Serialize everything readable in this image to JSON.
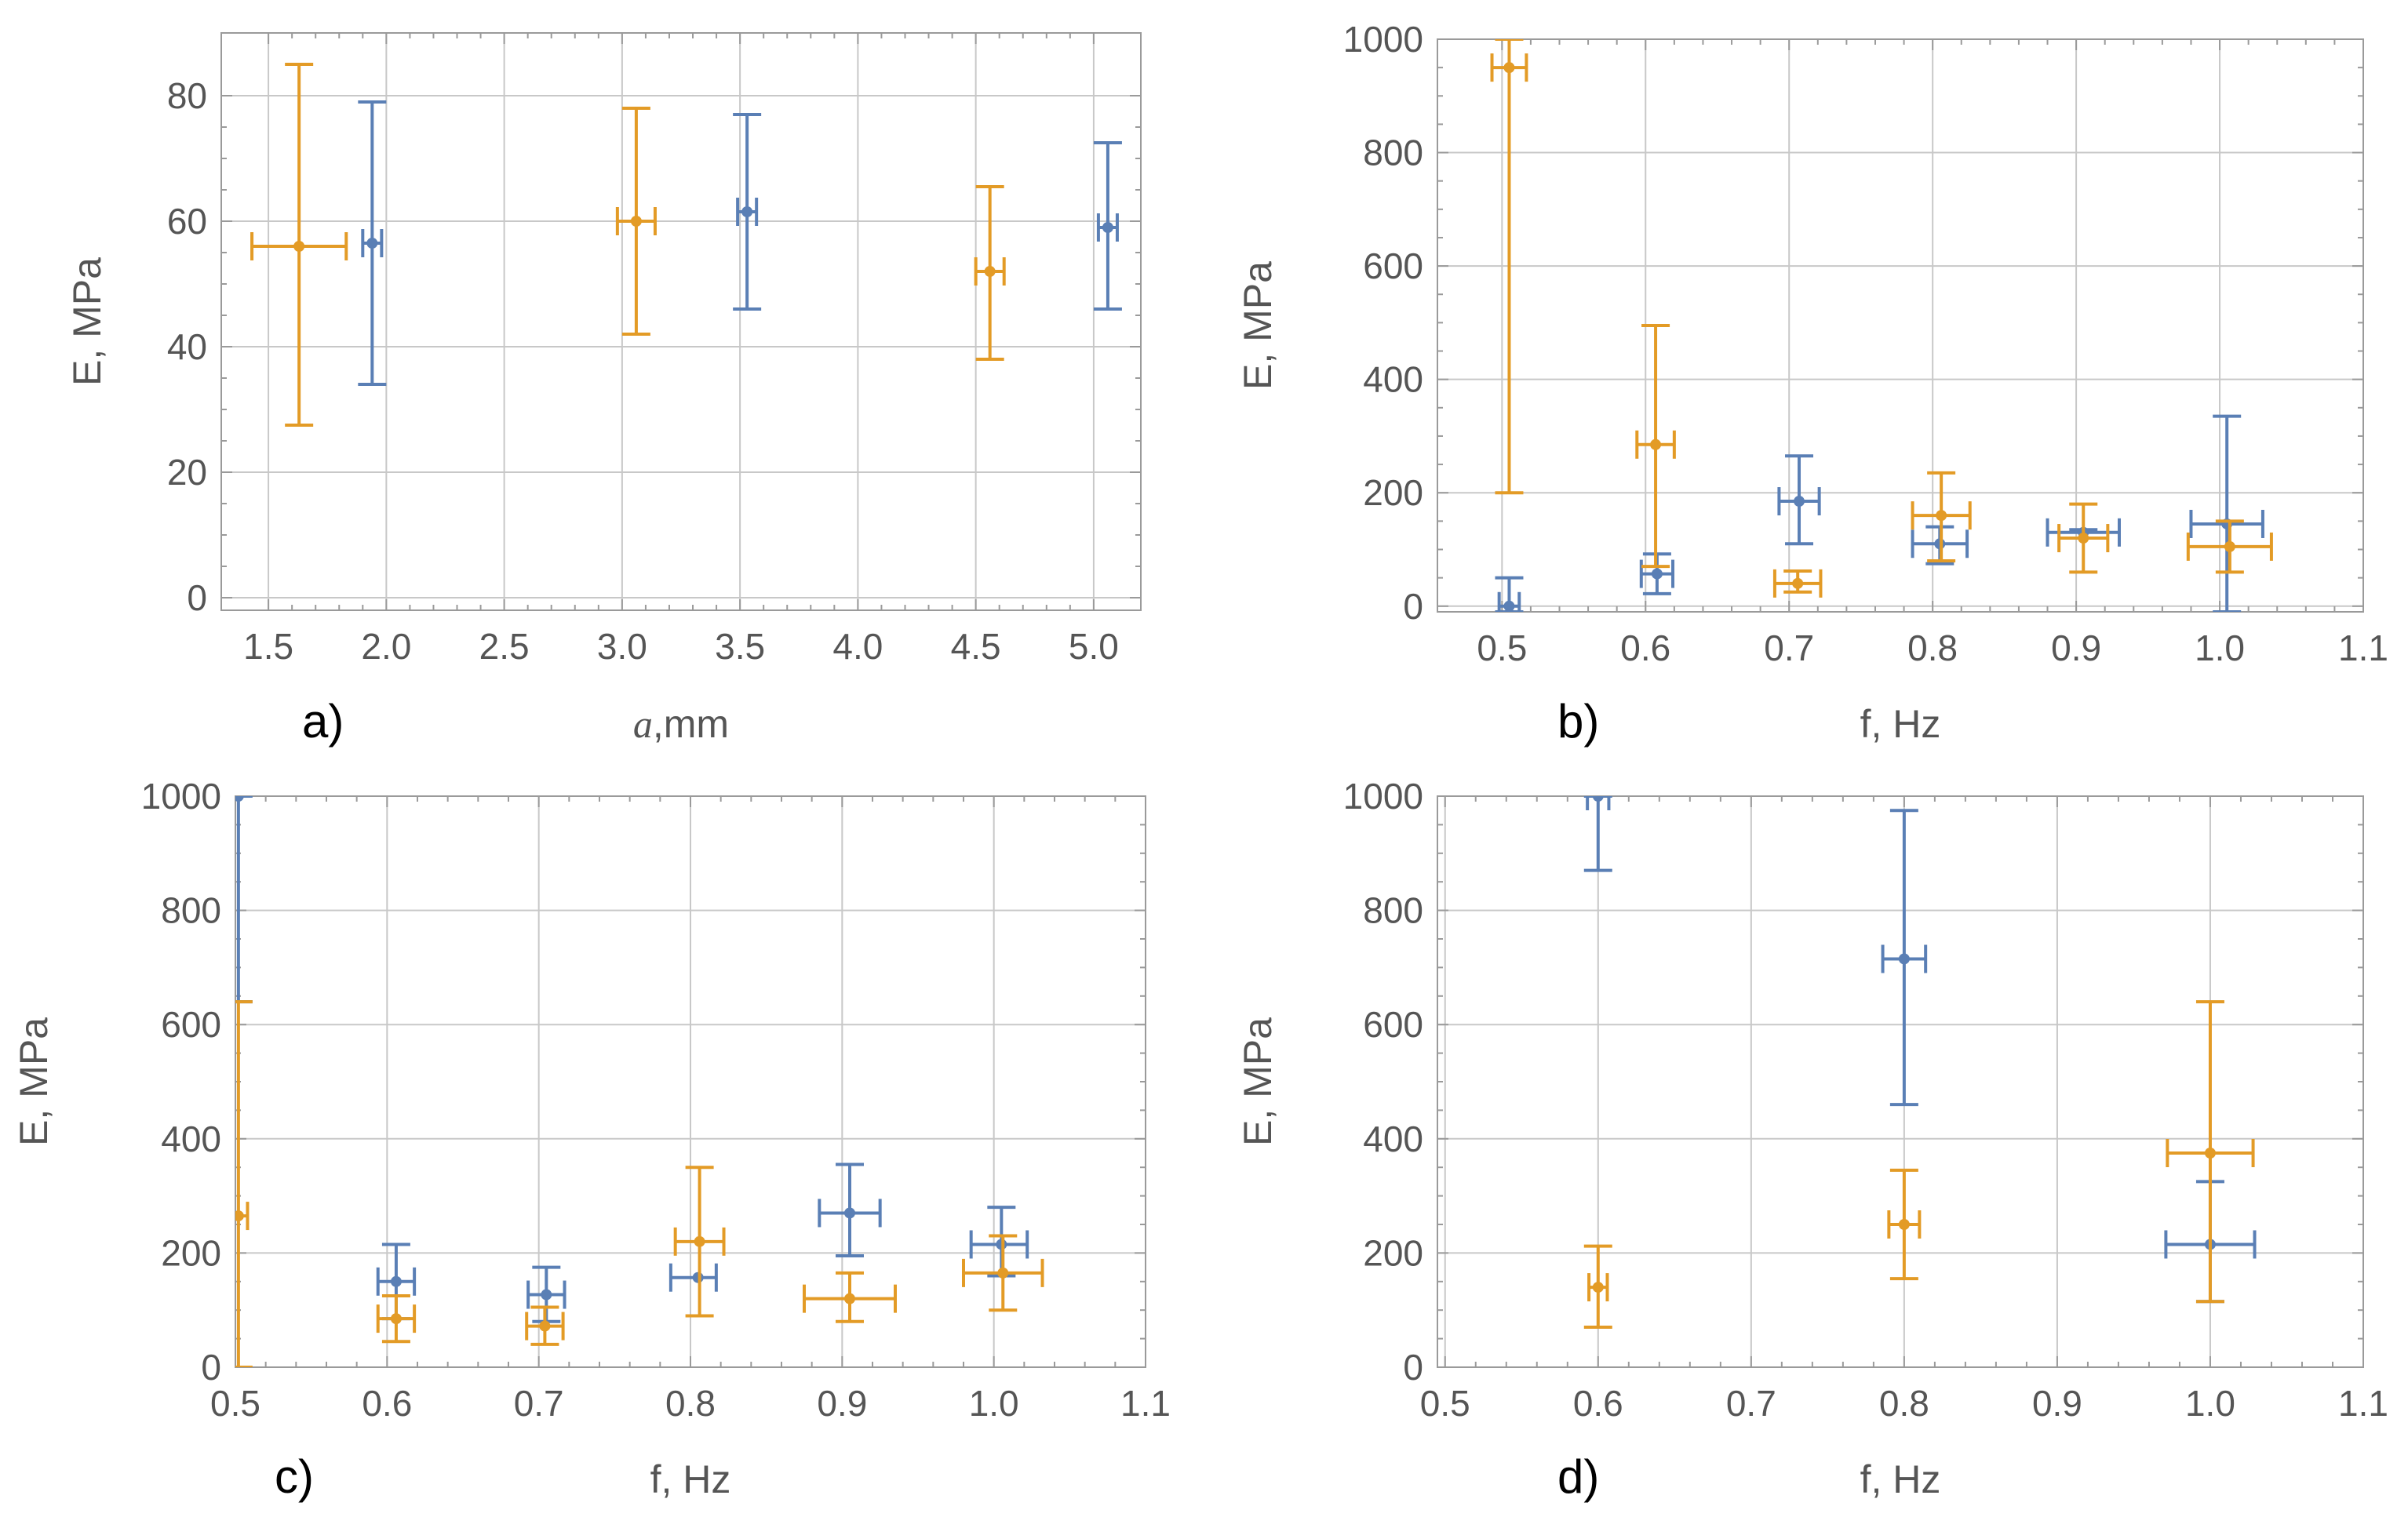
{
  "colors": {
    "series_a": "#5a7fb5",
    "series_b": "#e39b26"
  },
  "chart_data": [
    {
      "type": "scatter",
      "panel_label": "a)",
      "xlabel_italic": "a",
      "xlabel": ",mm",
      "ylabel": "E, MPa",
      "xlim": [
        1.3,
        5.2
      ],
      "ylim": [
        -2,
        90
      ],
      "xticks": [
        1.5,
        2.0,
        2.5,
        3.0,
        3.5,
        4.0,
        4.5,
        5.0
      ],
      "xtick_labels": [
        "1.5",
        "2.0",
        "2.5",
        "3.0",
        "3.5",
        "4.0",
        "4.5",
        "5.0"
      ],
      "yticks": [
        0,
        20,
        40,
        60,
        80
      ],
      "ytick_labels": [
        "0",
        "20",
        "40",
        "60",
        "80"
      ],
      "series": [
        {
          "name": "blue",
          "color": "#5a7fb5",
          "points": [
            {
              "x": 1.94,
              "y": 56.5,
              "ylo": 34,
              "yhi": 79,
              "xlo": 1.9,
              "xhi": 1.98
            },
            {
              "x": 3.53,
              "y": 61.5,
              "ylo": 46,
              "yhi": 77,
              "xlo": 3.49,
              "xhi": 3.57
            },
            {
              "x": 5.06,
              "y": 59,
              "ylo": 46,
              "yhi": 72.5,
              "xlo": 5.02,
              "xhi": 5.1
            }
          ]
        },
        {
          "name": "orange",
          "color": "#e39b26",
          "points": [
            {
              "x": 1.63,
              "y": 56,
              "ylo": 27.5,
              "yhi": 85,
              "xlo": 1.43,
              "xhi": 1.83
            },
            {
              "x": 3.06,
              "y": 60,
              "ylo": 42,
              "yhi": 78,
              "xlo": 2.98,
              "xhi": 3.14
            },
            {
              "x": 4.56,
              "y": 52,
              "ylo": 38,
              "yhi": 65.5,
              "xlo": 4.5,
              "xhi": 4.62
            }
          ]
        }
      ]
    },
    {
      "type": "scatter",
      "panel_label": "b)",
      "xlabel": "f, Hz",
      "ylabel": "E, MPa",
      "xlim": [
        0.455,
        1.1
      ],
      "ylim": [
        -10,
        1000
      ],
      "xticks": [
        0.5,
        0.6,
        0.7,
        0.8,
        0.9,
        1.0,
        1.1
      ],
      "xtick_labels": [
        "0.5",
        "0.6",
        "0.7",
        "0.8",
        "0.9",
        "1.0",
        "1.1"
      ],
      "yticks": [
        0,
        200,
        400,
        600,
        800,
        1000
      ],
      "ytick_labels": [
        "0",
        "200",
        "400",
        "600",
        "800",
        "1000"
      ],
      "series": [
        {
          "name": "blue",
          "color": "#5a7fb5",
          "points": [
            {
              "x": 0.505,
              "y": 0,
              "ylo": -10,
              "yhi": 50,
              "xlo": 0.498,
              "xhi": 0.512
            },
            {
              "x": 0.608,
              "y": 57,
              "ylo": 22,
              "yhi": 92,
              "xlo": 0.597,
              "xhi": 0.619
            },
            {
              "x": 0.707,
              "y": 185,
              "ylo": 110,
              "yhi": 265,
              "xlo": 0.693,
              "xhi": 0.721
            },
            {
              "x": 0.805,
              "y": 110,
              "ylo": 75,
              "yhi": 140,
              "xlo": 0.786,
              "xhi": 0.824
            },
            {
              "x": 0.905,
              "y": 130,
              "ylo": 120,
              "yhi": 135,
              "xlo": 0.88,
              "xhi": 0.93
            },
            {
              "x": 1.005,
              "y": 145,
              "ylo": -10,
              "yhi": 335,
              "xlo": 0.98,
              "xhi": 1.03
            }
          ]
        },
        {
          "name": "orange",
          "color": "#e39b26",
          "points": [
            {
              "x": 0.505,
              "y": 950,
              "ylo": 200,
              "yhi": 1000,
              "xlo": 0.493,
              "xhi": 0.517
            },
            {
              "x": 0.607,
              "y": 285,
              "ylo": 70,
              "yhi": 495,
              "xlo": 0.594,
              "xhi": 0.62
            },
            {
              "x": 0.706,
              "y": 40,
              "ylo": 25,
              "yhi": 62,
              "xlo": 0.69,
              "xhi": 0.722
            },
            {
              "x": 0.806,
              "y": 160,
              "ylo": 80,
              "yhi": 235,
              "xlo": 0.786,
              "xhi": 0.826
            },
            {
              "x": 0.905,
              "y": 120,
              "ylo": 60,
              "yhi": 180,
              "xlo": 0.888,
              "xhi": 0.922
            },
            {
              "x": 1.007,
              "y": 105,
              "ylo": 60,
              "yhi": 150,
              "xlo": 0.978,
              "xhi": 1.036
            }
          ]
        }
      ]
    },
    {
      "type": "scatter",
      "panel_label": "c)",
      "xlabel": "f, Hz",
      "ylabel": "E, MPa",
      "xlim": [
        0.5,
        1.1
      ],
      "ylim": [
        0,
        1000
      ],
      "xticks": [
        0.5,
        0.6,
        0.7,
        0.8,
        0.9,
        1.0,
        1.1
      ],
      "xtick_labels": [
        "0.5",
        "0.6",
        "0.7",
        "0.8",
        "0.9",
        "1.0",
        "1.1"
      ],
      "yticks": [
        0,
        200,
        400,
        600,
        800,
        1000
      ],
      "ytick_labels": [
        "0",
        "200",
        "400",
        "600",
        "800",
        "1000"
      ],
      "series": [
        {
          "name": "blue",
          "color": "#5a7fb5",
          "points": [
            {
              "x": 0.502,
              "y": 1000,
              "ylo": 640,
              "yhi": 1000,
              "xlo": 0.502,
              "xhi": 0.502
            },
            {
              "x": 0.606,
              "y": 150,
              "ylo": 85,
              "yhi": 215,
              "xlo": 0.594,
              "xhi": 0.618
            },
            {
              "x": 0.705,
              "y": 127,
              "ylo": 80,
              "yhi": 175,
              "xlo": 0.693,
              "xhi": 0.717
            },
            {
              "x": 0.805,
              "y": 157,
              "ylo": 157,
              "yhi": 157,
              "xlo": 0.787,
              "xhi": 0.817
            },
            {
              "x": 0.905,
              "y": 270,
              "ylo": 195,
              "yhi": 355,
              "xlo": 0.885,
              "xhi": 0.925
            },
            {
              "x": 1.005,
              "y": 215,
              "ylo": 160,
              "yhi": 280,
              "xlo": 0.985,
              "xhi": 1.022
            }
          ]
        },
        {
          "name": "orange",
          "color": "#e39b26",
          "points": [
            {
              "x": 0.502,
              "y": 265,
              "ylo": 0,
              "yhi": 640,
              "xlo": 0.496,
              "xhi": 0.508
            },
            {
              "x": 0.606,
              "y": 85,
              "ylo": 45,
              "yhi": 125,
              "xlo": 0.594,
              "xhi": 0.618
            },
            {
              "x": 0.704,
              "y": 72,
              "ylo": 40,
              "yhi": 105,
              "xlo": 0.692,
              "xhi": 0.716
            },
            {
              "x": 0.806,
              "y": 220,
              "ylo": 90,
              "yhi": 350,
              "xlo": 0.79,
              "xhi": 0.822
            },
            {
              "x": 0.905,
              "y": 120,
              "ylo": 80,
              "yhi": 165,
              "xlo": 0.875,
              "xhi": 0.935
            },
            {
              "x": 1.006,
              "y": 165,
              "ylo": 100,
              "yhi": 230,
              "xlo": 0.98,
              "xhi": 1.032
            }
          ]
        }
      ]
    },
    {
      "type": "scatter",
      "panel_label": "d)",
      "xlabel": "f, Hz",
      "ylabel": "E, MPa",
      "xlim": [
        0.495,
        1.1
      ],
      "ylim": [
        0,
        1000
      ],
      "xticks": [
        0.5,
        0.6,
        0.7,
        0.8,
        0.9,
        1.0,
        1.1
      ],
      "xtick_labels": [
        "0.5",
        "0.6",
        "0.7",
        "0.8",
        "0.9",
        "1.0",
        "1.1"
      ],
      "yticks": [
        0,
        200,
        400,
        600,
        800,
        1000
      ],
      "ytick_labels": [
        "0",
        "200",
        "400",
        "600",
        "800",
        "1000"
      ],
      "series": [
        {
          "name": "blue",
          "color": "#5a7fb5",
          "points": [
            {
              "x": 0.6,
              "y": 1000,
              "ylo": 870,
              "yhi": 1000,
              "xlo": 0.593,
              "xhi": 0.607
            },
            {
              "x": 0.8,
              "y": 715,
              "ylo": 460,
              "yhi": 975,
              "xlo": 0.786,
              "xhi": 0.814
            },
            {
              "x": 1.0,
              "y": 215,
              "ylo": 115,
              "yhi": 325,
              "xlo": 0.971,
              "xhi": 1.029
            }
          ]
        },
        {
          "name": "orange",
          "color": "#e39b26",
          "points": [
            {
              "x": 0.6,
              "y": 140,
              "ylo": 70,
              "yhi": 212,
              "xlo": 0.594,
              "xhi": 0.606
            },
            {
              "x": 0.8,
              "y": 250,
              "ylo": 155,
              "yhi": 345,
              "xlo": 0.79,
              "xhi": 0.81
            },
            {
              "x": 1.0,
              "y": 375,
              "ylo": 115,
              "yhi": 640,
              "xlo": 0.972,
              "xhi": 1.028
            }
          ]
        }
      ]
    }
  ]
}
